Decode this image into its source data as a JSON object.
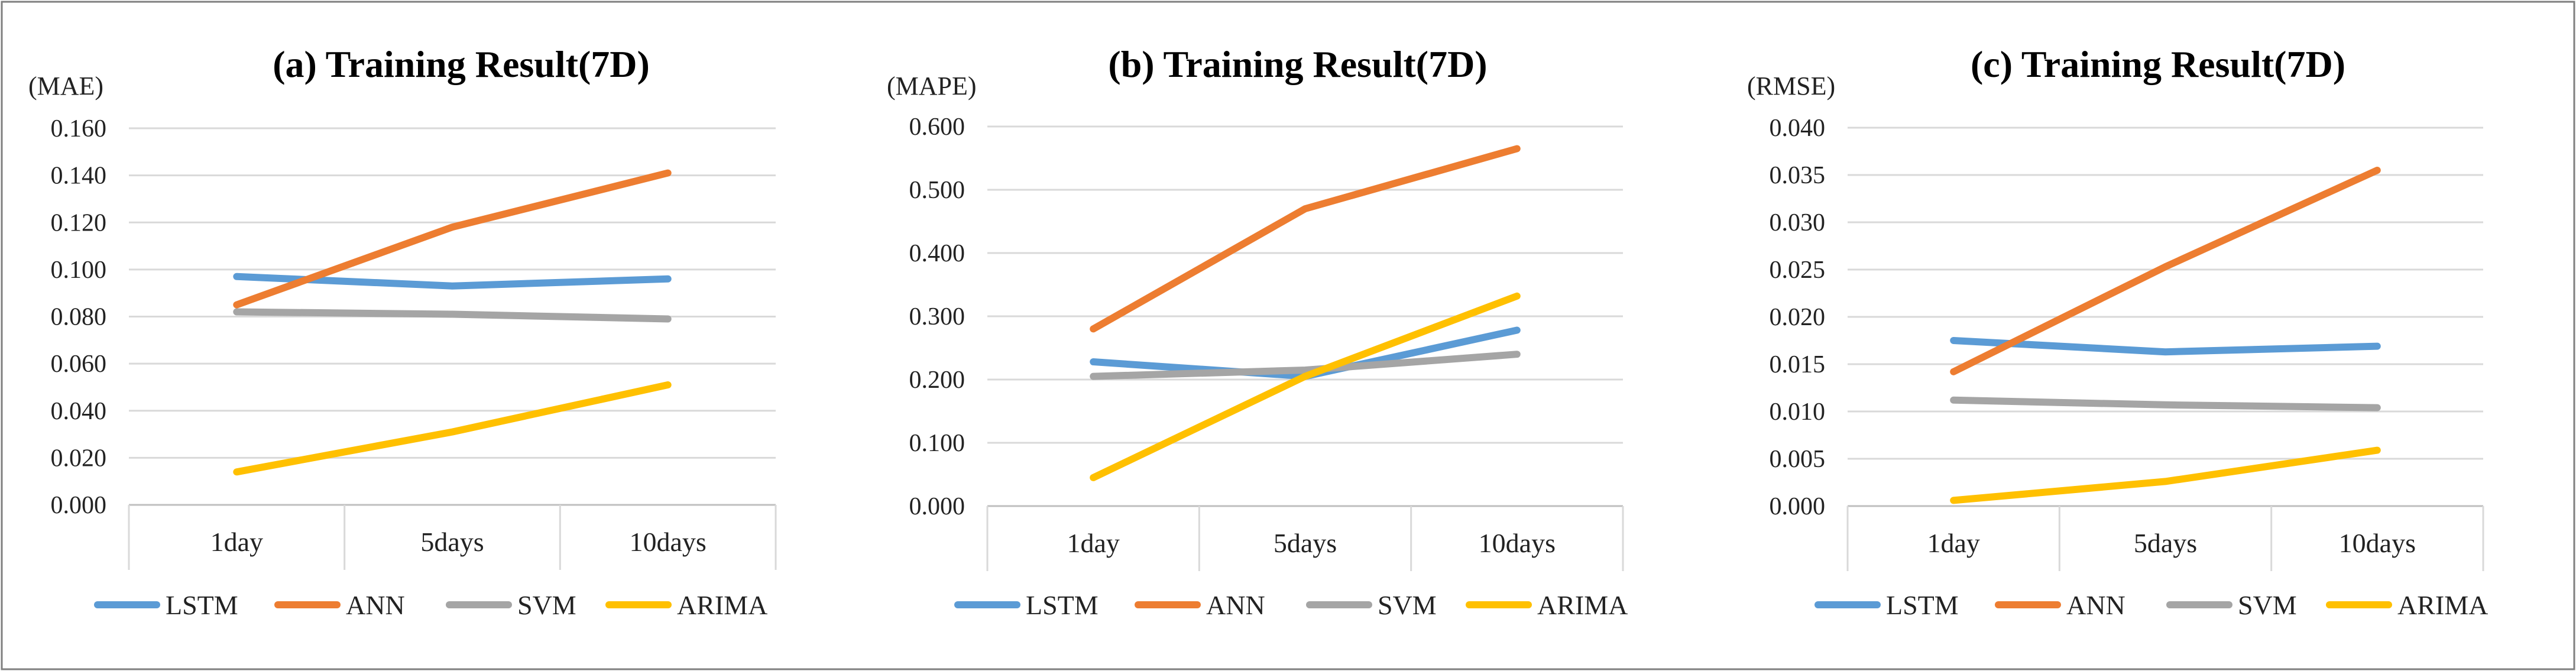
{
  "chart_data": [
    {
      "type": "line",
      "title": "(a) Training Result(7D)",
      "ylabel": "(MAE)",
      "xlabel": "",
      "categories": [
        "1day",
        "5days",
        "10days"
      ],
      "ylim": [
        0,
        0.16
      ],
      "yticks": [
        0,
        0.02,
        0.04,
        0.06,
        0.08,
        0.1,
        0.12,
        0.14,
        0.16
      ],
      "ytick_labels": [
        "0.000",
        "0.020",
        "0.040",
        "0.060",
        "0.080",
        "0.100",
        "0.120",
        "0.140",
        "0.160"
      ],
      "series": [
        {
          "name": "LSTM",
          "color": "#5B9BD5",
          "values": [
            0.097,
            0.093,
            0.096
          ]
        },
        {
          "name": "ANN",
          "color": "#ED7D31",
          "values": [
            0.085,
            0.118,
            0.141
          ]
        },
        {
          "name": "SVM",
          "color": "#A5A5A5",
          "values": [
            0.082,
            0.081,
            0.079
          ]
        },
        {
          "name": "ARIMA",
          "color": "#FFC000",
          "values": [
            0.014,
            0.031,
            0.051
          ]
        }
      ],
      "legend": "bottom"
    },
    {
      "type": "line",
      "title": "(b) Training Result(7D)",
      "ylabel": "(MAPE)",
      "xlabel": "",
      "categories": [
        "1day",
        "5days",
        "10days"
      ],
      "ylim": [
        0,
        0.6
      ],
      "yticks": [
        0,
        0.1,
        0.2,
        0.3,
        0.4,
        0.5,
        0.6
      ],
      "ytick_labels": [
        "0.000",
        "0.100",
        "0.200",
        "0.300",
        "0.400",
        "0.500",
        "0.600"
      ],
      "series": [
        {
          "name": "LSTM",
          "color": "#5B9BD5",
          "values": [
            0.228,
            0.205,
            0.278
          ]
        },
        {
          "name": "ANN",
          "color": "#ED7D31",
          "values": [
            0.28,
            0.47,
            0.565
          ]
        },
        {
          "name": "SVM",
          "color": "#A5A5A5",
          "values": [
            0.205,
            0.215,
            0.24
          ]
        },
        {
          "name": "ARIMA",
          "color": "#FFC000",
          "values": [
            0.045,
            0.205,
            0.332
          ]
        }
      ],
      "legend": "bottom"
    },
    {
      "type": "line",
      "title": "(c) Training Result(7D)",
      "ylabel": "(RMSE)",
      "xlabel": "",
      "categories": [
        "1day",
        "5days",
        "10days"
      ],
      "ylim": [
        0,
        0.04
      ],
      "yticks": [
        0,
        0.005,
        0.01,
        0.015,
        0.02,
        0.025,
        0.03,
        0.035,
        0.04
      ],
      "ytick_labels": [
        "0.000",
        "0.005",
        "0.010",
        "0.015",
        "0.020",
        "0.025",
        "0.030",
        "0.035",
        "0.040"
      ],
      "series": [
        {
          "name": "LSTM",
          "color": "#5B9BD5",
          "values": [
            0.0175,
            0.0163,
            0.0169
          ]
        },
        {
          "name": "ANN",
          "color": "#ED7D31",
          "values": [
            0.0142,
            0.0253,
            0.0355
          ]
        },
        {
          "name": "SVM",
          "color": "#A5A5A5",
          "values": [
            0.0112,
            0.0107,
            0.0104
          ]
        },
        {
          "name": "ARIMA",
          "color": "#FFC000",
          "values": [
            0.0006,
            0.0026,
            0.0059
          ]
        }
      ],
      "legend": "bottom"
    }
  ]
}
